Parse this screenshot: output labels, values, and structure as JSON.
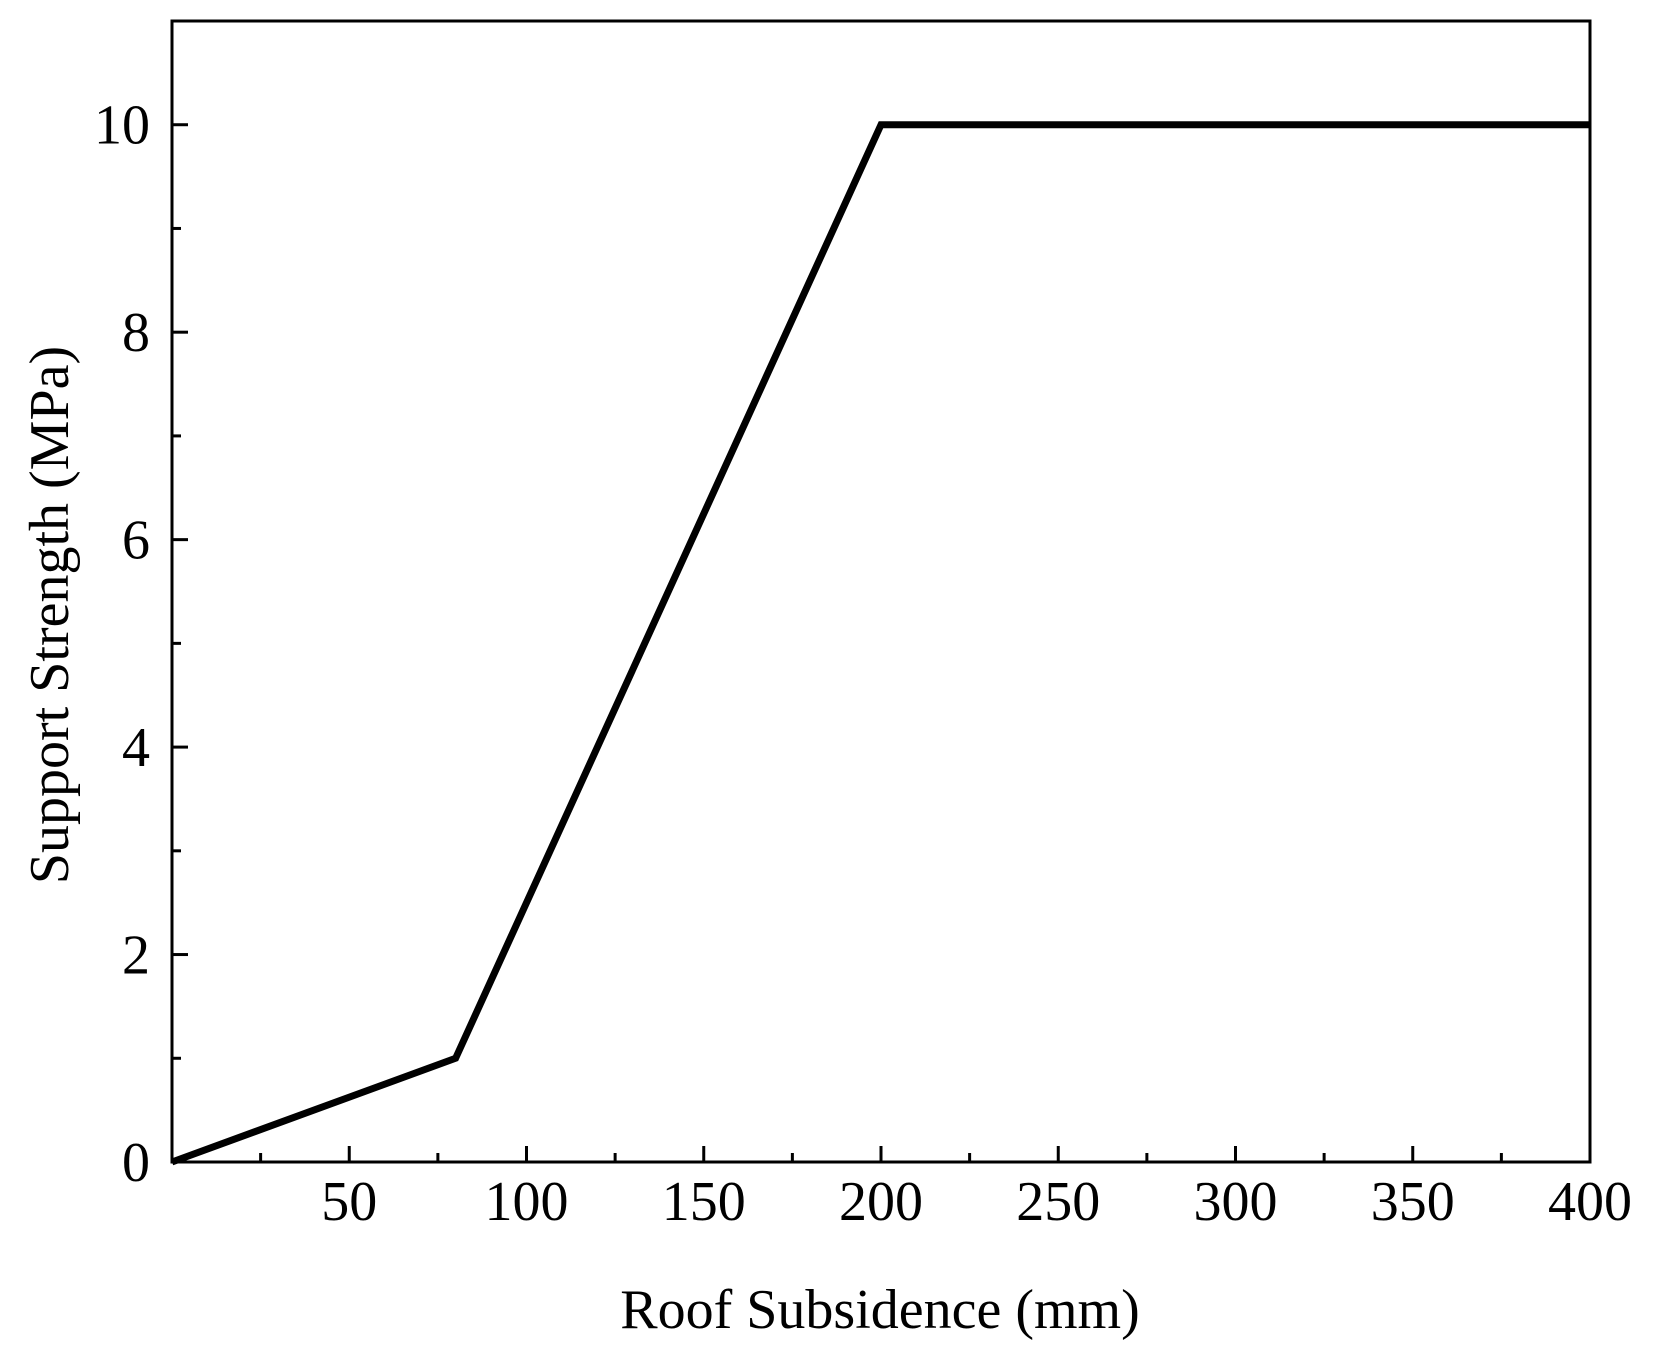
{
  "chart_data": {
    "type": "line",
    "x_label": "Roof Subsidence (mm)",
    "y_label": "Support Strength (MPa)",
    "x": [
      0,
      80,
      200,
      400
    ],
    "series": [
      {
        "values": [
          0,
          1,
          10,
          10
        ],
        "color": "#000000"
      }
    ],
    "xlim": [
      0,
      400
    ],
    "ylim": [
      0,
      11
    ],
    "xticks": [
      50,
      100,
      150,
      200,
      250,
      300,
      350,
      400
    ],
    "xminorticks": [
      25,
      75,
      125,
      175,
      225,
      275,
      325,
      375
    ],
    "yticks": [
      0,
      2,
      4,
      6,
      8,
      10
    ],
    "yminorticks": [
      1,
      3,
      5,
      7,
      9
    ],
    "grid": false
  }
}
